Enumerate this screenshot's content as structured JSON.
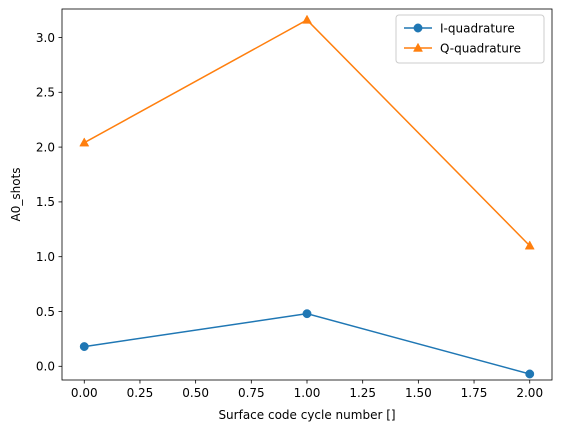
{
  "chart_data": {
    "type": "line",
    "title": "",
    "xlabel": "Surface code cycle number []",
    "ylabel": "A0_shots",
    "x": [
      0,
      1,
      2
    ],
    "xlim": [
      -0.1,
      2.1
    ],
    "ylim": [
      -0.125,
      3.26
    ],
    "xticks": [
      "0.00",
      "0.25",
      "0.50",
      "0.75",
      "1.00",
      "1.25",
      "1.50",
      "1.75",
      "2.00"
    ],
    "yticks": [
      "0.0",
      "0.5",
      "1.0",
      "1.5",
      "2.0",
      "2.5",
      "3.0"
    ],
    "grid": false,
    "legend_position": "top-right",
    "series": [
      {
        "name": "I-quadrature",
        "values": [
          0.18,
          0.48,
          -0.07
        ],
        "color": "#1f77b4",
        "marker": "circle"
      },
      {
        "name": "Q-quadrature",
        "values": [
          2.04,
          3.16,
          1.1
        ],
        "color": "#ff7f0e",
        "marker": "triangle"
      }
    ]
  }
}
